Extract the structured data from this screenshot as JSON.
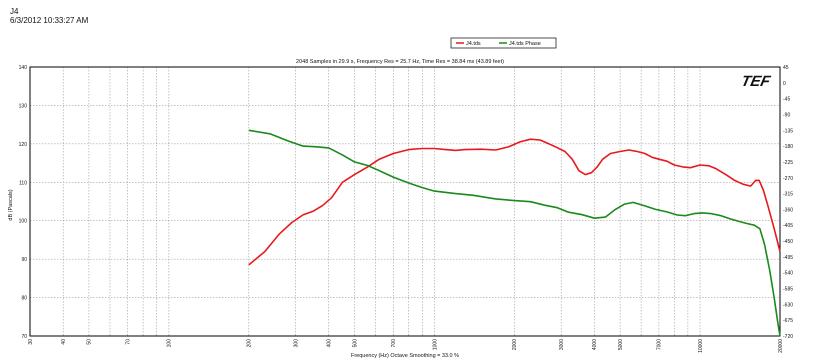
{
  "header": {
    "title": "J4",
    "timestamp": "6/3/2012 10:33:27 AM"
  },
  "colors": {
    "magnitude": "#e8191c",
    "phase": "#1a8a1a",
    "grid": "#8a8a8a",
    "frame": "#000000"
  },
  "chart_data": {
    "type": "line",
    "subtitle": "2048 Samples in 29.9 s, Frequency Res = 25.7 Hz, Time Res = 38.84 ms (43.89 feet)",
    "xlabel": "Frequency (Hz) Octave Smoothing = 33.0 %",
    "ylabel": "dB (Pascals)",
    "logo": "TEF",
    "x_scale": "log",
    "xlim": [
      30,
      20000
    ],
    "ylim": [
      70,
      140
    ],
    "y2lim": [
      -720,
      45
    ],
    "grid": true,
    "legend_position": "top-center",
    "x_ticks": [
      "30",
      "40",
      "50",
      "70",
      "100",
      "200",
      "300",
      "400",
      "500",
      "700",
      "1000",
      "2000",
      "3000",
      "4000",
      "5000",
      "7000",
      "10000",
      "20000"
    ],
    "y_ticks": [
      "70",
      "80",
      "90",
      "100",
      "110",
      "120",
      "130",
      "140"
    ],
    "y2_ticks": [
      "45",
      "0",
      "-45",
      "-90",
      "-135",
      "-180",
      "-225",
      "-270",
      "-315",
      "-360",
      "-405",
      "-450",
      "-495",
      "-540",
      "-585",
      "-630",
      "-675",
      "-720"
    ],
    "series": [
      {
        "name": "J4.tds",
        "axis": "left",
        "color": "#e8191c",
        "points": [
          [
            200,
            88.5
          ],
          [
            230,
            92
          ],
          [
            260,
            96.5
          ],
          [
            290,
            99.5
          ],
          [
            320,
            101.5
          ],
          [
            350,
            102.5
          ],
          [
            380,
            104
          ],
          [
            410,
            106
          ],
          [
            450,
            110
          ],
          [
            500,
            112
          ],
          [
            560,
            114
          ],
          [
            620,
            116
          ],
          [
            700,
            117.5
          ],
          [
            800,
            118.5
          ],
          [
            900,
            118.8
          ],
          [
            1000,
            118.8
          ],
          [
            1100,
            118.5
          ],
          [
            1200,
            118.3
          ],
          [
            1300,
            118.5
          ],
          [
            1500,
            118.6
          ],
          [
            1700,
            118.4
          ],
          [
            1900,
            119.2
          ],
          [
            2100,
            120.5
          ],
          [
            2300,
            121.2
          ],
          [
            2500,
            121
          ],
          [
            2700,
            120
          ],
          [
            2900,
            119
          ],
          [
            3100,
            118
          ],
          [
            3300,
            116
          ],
          [
            3500,
            113
          ],
          [
            3700,
            112
          ],
          [
            3900,
            112.5
          ],
          [
            4100,
            114
          ],
          [
            4300,
            116
          ],
          [
            4600,
            117.5
          ],
          [
            5000,
            118
          ],
          [
            5400,
            118.4
          ],
          [
            5800,
            118
          ],
          [
            6200,
            117.5
          ],
          [
            6600,
            116.5
          ],
          [
            7000,
            116
          ],
          [
            7500,
            115.5
          ],
          [
            8000,
            114.5
          ],
          [
            8600,
            114
          ],
          [
            9200,
            113.8
          ],
          [
            10000,
            114.5
          ],
          [
            10800,
            114.3
          ],
          [
            11500,
            113.5
          ],
          [
            12500,
            112
          ],
          [
            13500,
            110.5
          ],
          [
            14500,
            109.5
          ],
          [
            15500,
            109
          ],
          [
            16200,
            110.5
          ],
          [
            16700,
            110.5
          ],
          [
            17300,
            108
          ],
          [
            18000,
            104
          ],
          [
            19000,
            98
          ],
          [
            20000,
            92
          ]
        ]
      },
      {
        "name": "J4.tds Phase",
        "axis": "right",
        "color": "#1a8a1a",
        "points": [
          [
            200,
            -135
          ],
          [
            240,
            -145
          ],
          [
            280,
            -165
          ],
          [
            320,
            -180
          ],
          [
            360,
            -182
          ],
          [
            400,
            -185
          ],
          [
            450,
            -205
          ],
          [
            500,
            -225
          ],
          [
            560,
            -235
          ],
          [
            620,
            -250
          ],
          [
            700,
            -268
          ],
          [
            800,
            -285
          ],
          [
            900,
            -298
          ],
          [
            1000,
            -308
          ],
          [
            1200,
            -315
          ],
          [
            1400,
            -320
          ],
          [
            1700,
            -330
          ],
          [
            2000,
            -335
          ],
          [
            2300,
            -338
          ],
          [
            2600,
            -348
          ],
          [
            2900,
            -355
          ],
          [
            3200,
            -368
          ],
          [
            3600,
            -375
          ],
          [
            4000,
            -385
          ],
          [
            4400,
            -382
          ],
          [
            4800,
            -360
          ],
          [
            5200,
            -345
          ],
          [
            5600,
            -340
          ],
          [
            6200,
            -350
          ],
          [
            6800,
            -360
          ],
          [
            7500,
            -367
          ],
          [
            8200,
            -376
          ],
          [
            8800,
            -378
          ],
          [
            9500,
            -372
          ],
          [
            10200,
            -370
          ],
          [
            11000,
            -372
          ],
          [
            12000,
            -378
          ],
          [
            13000,
            -387
          ],
          [
            14000,
            -394
          ],
          [
            15000,
            -400
          ],
          [
            16000,
            -405
          ],
          [
            16800,
            -415
          ],
          [
            17500,
            -460
          ],
          [
            18300,
            -535
          ],
          [
            19000,
            -610
          ],
          [
            19600,
            -680
          ],
          [
            20000,
            -720
          ]
        ]
      }
    ]
  }
}
